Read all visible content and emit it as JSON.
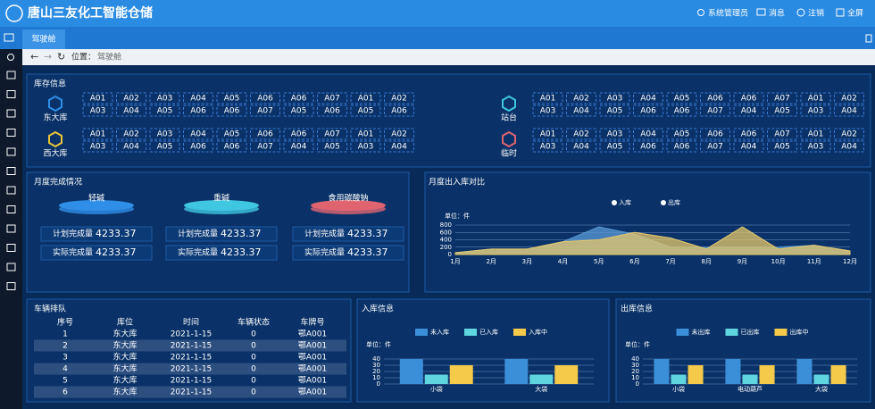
{
  "header": {
    "title": "唐山三友化工智能仓储",
    "user": "系统管理员",
    "messages": "消息",
    "logout": "注销",
    "fullscreen": "全屏"
  },
  "tab": "驾驶舱",
  "breadcrumb": {
    "label": "位置：",
    "current": "驾驶舱"
  },
  "inventory": {
    "title": "库存信息",
    "warehouses": [
      {
        "name": "东大库",
        "color": "#2f8fe8",
        "rows": [
          [
            "A01",
            "A02",
            "A03",
            "A04",
            "A05",
            "A06",
            "A06",
            "A07",
            "A01",
            "A02"
          ],
          [
            "A03",
            "A04",
            "A05",
            "A06",
            "A06",
            "A07",
            "A05",
            "A06",
            "A05",
            "A06"
          ]
        ]
      },
      {
        "name": "西大库",
        "color": "#e8c53a",
        "rows": [
          [
            "A01",
            "A02",
            "A03",
            "A04",
            "A05",
            "A06",
            "A06",
            "A07",
            "A01",
            "A02"
          ],
          [
            "A03",
            "A04",
            "A05",
            "A06",
            "A06",
            "A07",
            "A04",
            "A05",
            "A03",
            "A04"
          ]
        ]
      },
      {
        "name": "站台",
        "color": "#3fc6e0",
        "rows": [
          [
            "A01",
            "A02",
            "A03",
            "A04",
            "A05",
            "A06",
            "A06",
            "A07",
            "A01",
            "A02"
          ],
          [
            "A03",
            "A04",
            "A05",
            "A06",
            "A06",
            "A07",
            "A04",
            "A05",
            "A03",
            "A04"
          ]
        ]
      },
      {
        "name": "临时",
        "color": "#e06470",
        "rows": [
          [
            "A01",
            "A02",
            "A03",
            "A04",
            "A05",
            "A06",
            "A06",
            "A07",
            "A01",
            "A02"
          ],
          [
            "A03",
            "A04",
            "A05",
            "A06",
            "A06",
            "A07",
            "A04",
            "A05",
            "A03",
            "A04"
          ]
        ]
      }
    ]
  },
  "monthly_completion": {
    "title": "月度完成情况",
    "items": [
      {
        "name": "轻碱",
        "color": "#2f8fe8",
        "plan_label": "计划完成量",
        "plan": 4233.37,
        "actual_label": "实际完成量",
        "actual": 4233.37
      },
      {
        "name": "重碱",
        "color": "#3fc6e0",
        "plan_label": "计划完成量",
        "plan": 4233.37,
        "actual_label": "实际完成量",
        "actual": 4233.37
      },
      {
        "name": "食用碳酸钠",
        "color": "#e06470",
        "plan_label": "计划完成量",
        "plan": 4233.37,
        "actual_label": "实际完成量",
        "actual": 4233.37
      }
    ]
  },
  "chart_data": [
    {
      "type": "area",
      "title": "月度出入库对比",
      "unit": "单位：件",
      "categories": [
        "1月",
        "2月",
        "3月",
        "4月",
        "5月",
        "6月",
        "7月",
        "8月",
        "9月",
        "10月",
        "11月",
        "12月"
      ],
      "series": [
        {
          "name": "入库",
          "color": "#5b9bd5",
          "values": [
            50,
            150,
            150,
            350,
            750,
            550,
            200,
            200,
            200,
            200,
            250,
            100
          ]
        },
        {
          "name": "出库",
          "color": "#e7c86a",
          "values": [
            50,
            150,
            150,
            350,
            400,
            600,
            450,
            150,
            750,
            150,
            250,
            100
          ]
        }
      ],
      "ylim": [
        0,
        800
      ],
      "yticks": [
        0,
        200,
        400,
        600,
        800
      ],
      "grid": true
    },
    {
      "type": "bar",
      "title": "入库信息",
      "unit": "单位：件",
      "categories": [
        "小袋",
        "大袋"
      ],
      "series": [
        {
          "name": "未入库",
          "color": "#3a8fd8",
          "values": [
            40,
            40
          ]
        },
        {
          "name": "已入库",
          "color": "#5fd5e0",
          "values": [
            15,
            15
          ]
        },
        {
          "name": "入库中",
          "color": "#f5c94a",
          "values": [
            30,
            30
          ]
        }
      ],
      "ylim": [
        0,
        40
      ],
      "yticks": [
        0,
        10,
        20,
        30,
        40
      ],
      "grid": true
    },
    {
      "type": "bar",
      "title": "出库信息",
      "unit": "单位：件",
      "categories": [
        "小袋",
        "电动葫芦",
        "大袋"
      ],
      "series": [
        {
          "name": "未出库",
          "color": "#3a8fd8",
          "values": [
            40,
            40,
            40
          ]
        },
        {
          "name": "已出库",
          "color": "#5fd5e0",
          "values": [
            15,
            15,
            15
          ]
        },
        {
          "name": "出库中",
          "color": "#f5c94a",
          "values": [
            30,
            30,
            30
          ]
        }
      ],
      "ylim": [
        0,
        40
      ],
      "yticks": [
        0,
        10,
        20,
        30,
        40
      ],
      "grid": true
    }
  ],
  "vehicle_queue": {
    "title": "车辆排队",
    "columns": [
      "序号",
      "库位",
      "时间",
      "车辆状态",
      "车牌号"
    ],
    "rows": [
      [
        "1",
        "东大库",
        "2021-1-15",
        "0",
        "鄂A001"
      ],
      [
        "2",
        "东大库",
        "2021-1-15",
        "0",
        "鄂A001"
      ],
      [
        "3",
        "东大库",
        "2021-1-15",
        "0",
        "鄂A001"
      ],
      [
        "4",
        "东大库",
        "2021-1-15",
        "0",
        "鄂A001"
      ],
      [
        "5",
        "东大库",
        "2021-1-15",
        "0",
        "鄂A001"
      ],
      [
        "6",
        "东大库",
        "2021-1-15",
        "0",
        "鄂A001"
      ]
    ]
  }
}
